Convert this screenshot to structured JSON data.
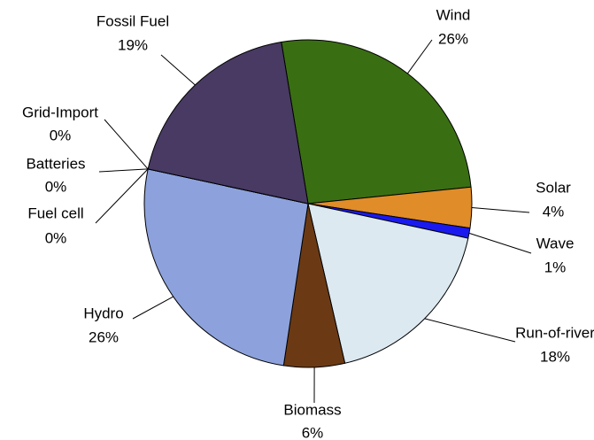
{
  "chart_data": {
    "type": "pie",
    "categories": [
      "Wind",
      "Solar",
      "Wave",
      "Run-of-river",
      "Biomass",
      "Hydro",
      "Fuel cell",
      "Batteries",
      "Grid-Import",
      "Fossil Fuel"
    ],
    "values": [
      26,
      4,
      1,
      18,
      6,
      26,
      0,
      0,
      0,
      19
    ],
    "value_labels": [
      "26%",
      "4%",
      "1%",
      "18%",
      "6%",
      "26%",
      "0%",
      "0%",
      "0%",
      "19%"
    ],
    "colors": [
      "#3a6e13",
      "#e08c28",
      "#1a1aef",
      "#dce9f1",
      "#6b3a14",
      "#8da2dc",
      "#cccccc",
      "#999999",
      "#666666",
      "#483a63"
    ]
  }
}
